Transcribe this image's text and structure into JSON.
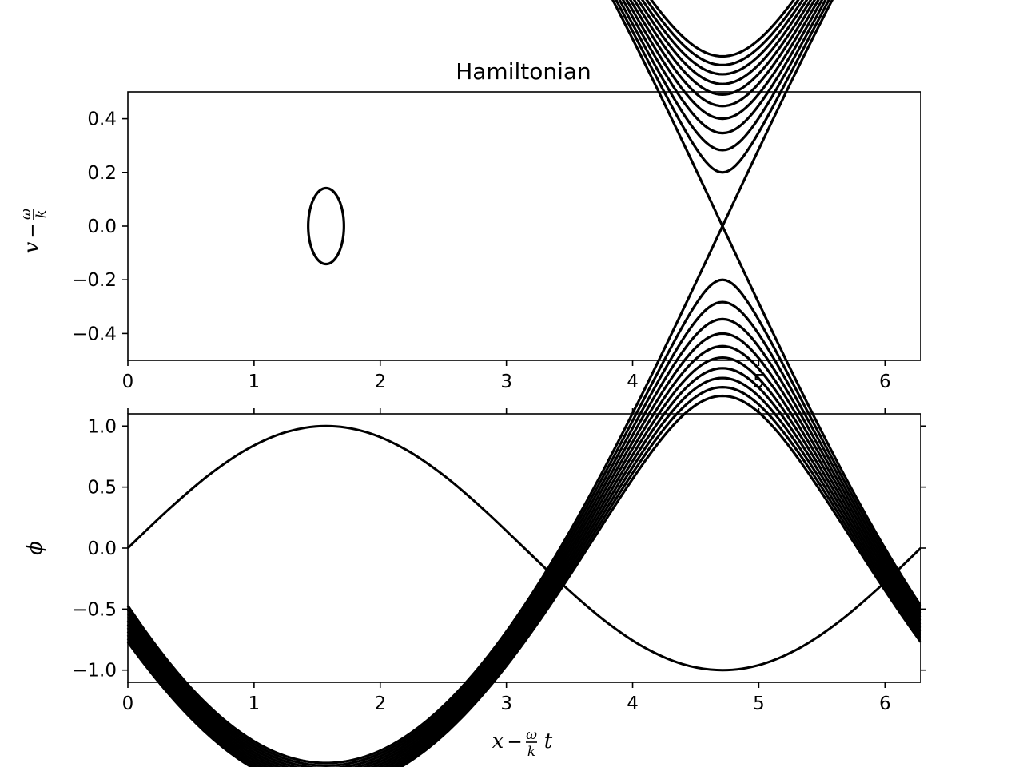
{
  "chart_data": [
    {
      "type": "contour",
      "title": "Hamiltonian",
      "ylabel": {
        "base": "v",
        "op": "−",
        "num": "ω",
        "den": "k"
      },
      "xlim": [
        0,
        6.283185
      ],
      "ylim": [
        -0.5,
        0.5
      ],
      "xticks": [
        0,
        1,
        2,
        3,
        4,
        5,
        6
      ],
      "yticks": [
        -0.4,
        -0.2,
        0.0,
        0.2,
        0.4
      ],
      "xtick_labels": [
        "0",
        "1",
        "2",
        "3",
        "4",
        "5",
        "6"
      ],
      "ytick_labels": [
        "−0.4",
        "−0.2",
        "0.0",
        "0.2",
        "0.4"
      ],
      "function": "H = v^2/2 - sin(x)",
      "levels": [
        -0.99,
        1.0,
        1.02,
        1.04,
        1.06,
        1.08,
        1.1,
        1.12,
        1.14,
        1.16,
        1.18,
        1.2
      ],
      "grid": false,
      "color": "#000000"
    },
    {
      "type": "line",
      "ylabel": "ϕ",
      "xlabel": {
        "base": "x",
        "op": "−",
        "num": "ω",
        "den": "k",
        "tail": "t"
      },
      "xlim": [
        0,
        6.283185
      ],
      "ylim": [
        -1.1,
        1.1
      ],
      "xticks": [
        0,
        1,
        2,
        3,
        4,
        5,
        6
      ],
      "yticks": [
        -1.0,
        -0.5,
        0.0,
        0.5,
        1.0
      ],
      "xtick_labels": [
        "0",
        "1",
        "2",
        "3",
        "4",
        "5",
        "6"
      ],
      "ytick_labels": [
        "−1.0",
        "−0.5",
        "0.0",
        "0.5",
        "1.0"
      ],
      "series": [
        {
          "x": [
            0,
            0.3142,
            0.6283,
            0.9425,
            1.2566,
            1.5708,
            1.885,
            2.1991,
            2.5133,
            2.8274,
            3.1416,
            3.4558,
            3.7699,
            4.0841,
            4.3982,
            4.7124,
            5.0265,
            5.3407,
            5.6549,
            5.969,
            6.2832
          ],
          "values": [
            0.0,
            0.309,
            0.5878,
            0.809,
            0.9511,
            1.0,
            0.9511,
            0.809,
            0.5878,
            0.309,
            0.0,
            -0.309,
            -0.5878,
            -0.809,
            -0.9511,
            -1.0,
            -0.9511,
            -0.809,
            -0.5878,
            -0.309,
            0.0
          ]
        }
      ],
      "grid": false,
      "color": "#000000"
    }
  ]
}
